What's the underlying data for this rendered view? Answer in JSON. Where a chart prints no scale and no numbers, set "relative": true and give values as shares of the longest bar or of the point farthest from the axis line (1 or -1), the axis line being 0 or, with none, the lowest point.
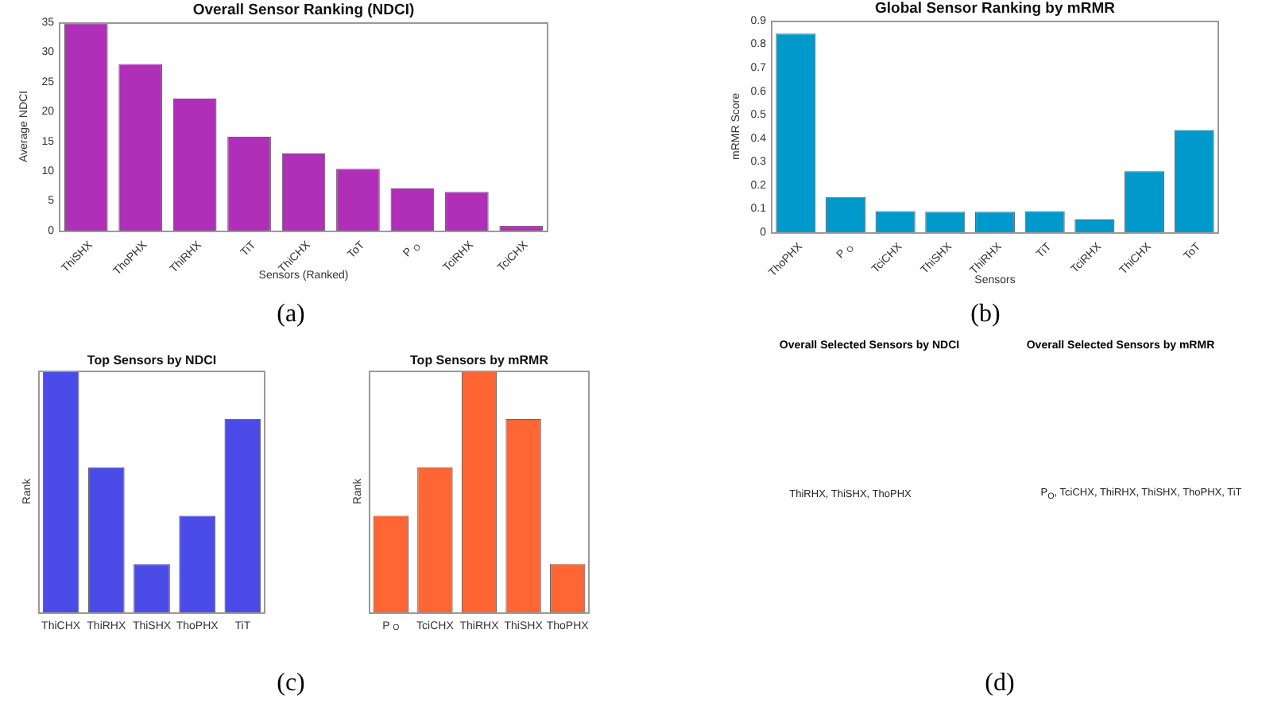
{
  "chart_data": [
    {
      "type": "bar",
      "title": "Overall Sensor Ranking (NDCI)",
      "xlabel": "Sensors (Ranked)",
      "ylabel": "Average NDCI",
      "categories": [
        "ThiSHX",
        "ThoPHX",
        "ThiRHX",
        "TiT",
        "ThiCHX",
        "ToT",
        "P$_{O}$",
        "TciRHX",
        "TciCHX"
      ],
      "values": [
        34.8,
        28,
        22.2,
        15.8,
        13,
        10.4,
        7.1,
        6.5,
        0.8
      ],
      "color": "#b02fb8",
      "ylim": [
        0,
        35
      ],
      "yticks": [
        0,
        5,
        10,
        15,
        20,
        25,
        30,
        35
      ],
      "annotations": [
        "(a)"
      ]
    },
    {
      "type": "bar",
      "title": "Global Sensor Ranking by mRMR",
      "xlabel": "Sensors",
      "ylabel": "mRMR Score",
      "categories": [
        "ThoPHX",
        "P$_{O}$",
        "TciCHX",
        "ThiSHX",
        "ThiRHX",
        "TiT",
        "TciRHX",
        "ThiCHX",
        "ToT"
      ],
      "values": [
        0.845,
        0.15,
        0.09,
        0.087,
        0.087,
        0.09,
        0.055,
        0.26,
        0.435
      ],
      "color": "#0099cc",
      "ylim": [
        0,
        0.9
      ],
      "yticks": [
        0,
        0.1,
        0.2,
        0.3,
        0.4,
        0.5,
        0.6,
        0.7,
        0.8,
        0.9
      ],
      "annotations": [
        "(b)"
      ]
    },
    {
      "type": "bar",
      "title": "Top Sensors by NDCI",
      "ylabel": "Rank",
      "relative": true,
      "categories": [
        "ThiCHX",
        "ThiRHX",
        "ThiSHX",
        "ThoPHX",
        "TiT"
      ],
      "values": [
        1,
        0.6,
        0.2,
        0.4,
        0.8
      ],
      "color": "#4b4be8",
      "annotations": [
        "(c)"
      ]
    },
    {
      "type": "bar",
      "title": "Top Sensors by mRMR",
      "ylabel": "Rank",
      "relative": true,
      "categories": [
        "P$_{O}$",
        "TciCHX",
        "ThiRHX",
        "ThiSHX",
        "ThoPHX"
      ],
      "values": [
        0.4,
        0.6,
        1,
        0.8,
        0.2
      ],
      "color": "#ff6633"
    },
    {
      "type": "other",
      "title": "Overall Selected Sensors by NDCI",
      "annotations": [
        "ThiRHX, ThiSHX, ThoPHX",
        "(d)"
      ]
    },
    {
      "type": "other",
      "title": "Overall Selected Sensors by mRMR",
      "annotations": [
        "P$_{O}$, TciCHX, ThiRHX, ThiSHX, ThoPHX, TiT"
      ]
    }
  ]
}
